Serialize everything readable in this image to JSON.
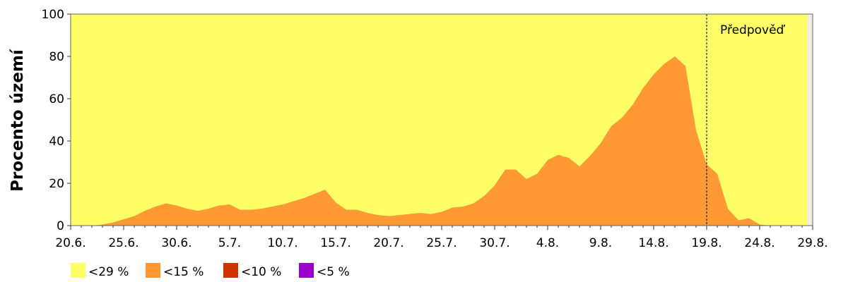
{
  "chart_data": {
    "type": "area",
    "title": "",
    "ylabel": "Procento území",
    "xlabel": "",
    "ylim": [
      0,
      100
    ],
    "yticks": [
      0,
      20,
      40,
      60,
      80,
      100
    ],
    "xticks": [
      "20.6.",
      "25.6.",
      "30.6.",
      "5.7.",
      "10.7.",
      "15.7.",
      "20.7.",
      "25.7.",
      "30.7.",
      "4.8.",
      "9.8.",
      "14.8.",
      "19.8.",
      "24.8.",
      "29.8."
    ],
    "x_start": "20.6.",
    "data_end_day": 69.5,
    "forecast_start": "19.8.",
    "forecast_label": "Předpověď",
    "grid": false,
    "legend_position": "bottom-left",
    "legend": [
      {
        "label": "<29 %",
        "color": "#ffff66"
      },
      {
        "label": "<15 %",
        "color": "#ff9933"
      },
      {
        "label": "<10 %",
        "color": "#cc3300"
      },
      {
        "label": "<5 %",
        "color": "#9900cc"
      }
    ],
    "series": [
      {
        "name": "<29 %",
        "color": "#ffff66",
        "constant": 100
      },
      {
        "name": "<15 %",
        "color": "#ff9933",
        "points": [
          [
            0,
            0
          ],
          [
            1,
            0
          ],
          [
            2,
            0
          ],
          [
            3,
            0.5
          ],
          [
            4,
            1.5
          ],
          [
            5,
            3
          ],
          [
            6,
            4.5
          ],
          [
            7,
            7
          ],
          [
            8,
            9
          ],
          [
            9,
            10.5
          ],
          [
            10,
            9.5
          ],
          [
            11,
            8
          ],
          [
            12,
            7
          ],
          [
            13,
            8
          ],
          [
            14,
            9.5
          ],
          [
            15,
            10
          ],
          [
            16,
            7.5
          ],
          [
            17,
            7.5
          ],
          [
            18,
            8
          ],
          [
            19,
            9
          ],
          [
            20,
            10
          ],
          [
            21,
            11.5
          ],
          [
            22,
            13
          ],
          [
            23,
            15
          ],
          [
            24,
            17
          ],
          [
            25,
            11
          ],
          [
            26,
            7.5
          ],
          [
            27,
            7.5
          ],
          [
            28,
            6
          ],
          [
            29,
            5
          ],
          [
            30,
            4.5
          ],
          [
            31,
            5
          ],
          [
            32,
            5.5
          ],
          [
            33,
            6
          ],
          [
            34,
            5.5
          ],
          [
            35,
            6.5
          ],
          [
            36,
            8.5
          ],
          [
            37,
            9
          ],
          [
            38,
            10.5
          ],
          [
            39,
            14
          ],
          [
            40,
            19
          ],
          [
            41,
            26.5
          ],
          [
            42,
            26.5
          ],
          [
            43,
            22
          ],
          [
            44,
            24.5
          ],
          [
            45,
            31
          ],
          [
            46,
            33.5
          ],
          [
            47,
            32
          ],
          [
            48,
            28
          ],
          [
            49,
            33
          ],
          [
            50,
            39
          ],
          [
            51,
            47
          ],
          [
            52,
            51
          ],
          [
            53,
            57
          ],
          [
            54,
            65
          ],
          [
            55,
            71.5
          ],
          [
            56,
            76.5
          ],
          [
            57,
            80
          ],
          [
            58,
            75.5
          ],
          [
            59,
            45
          ],
          [
            60,
            29
          ],
          [
            61,
            24.5
          ],
          [
            62,
            8
          ],
          [
            63,
            2.5
          ],
          [
            64,
            3.5
          ],
          [
            65,
            0.5
          ],
          [
            66,
            0
          ],
          [
            67,
            0
          ],
          [
            68,
            0
          ],
          [
            69,
            0
          ],
          [
            69.5,
            0
          ]
        ]
      },
      {
        "name": "<10 %",
        "color": "#cc3300",
        "points": []
      },
      {
        "name": "<5 %",
        "color": "#9900cc",
        "points": []
      }
    ]
  }
}
